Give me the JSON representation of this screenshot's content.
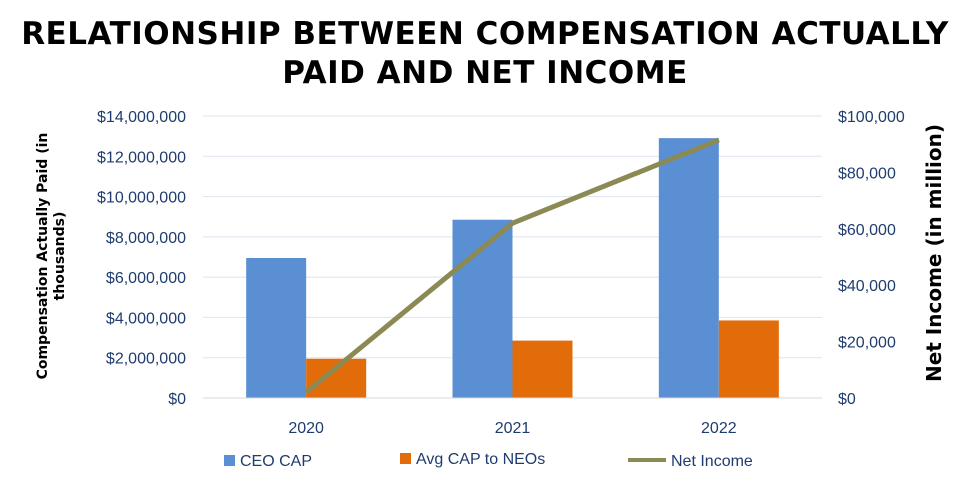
{
  "chart_data": {
    "type": "bar",
    "title_lines": [
      "RELATIONSHIP BETWEEN COMPENSATION ACTUALLY",
      "PAID AND NET INCOME"
    ],
    "categories": [
      "2020",
      "2021",
      "2022"
    ],
    "series": [
      {
        "name": "CEO CAP",
        "type": "bar",
        "axis": "left",
        "values": [
          6950000,
          8850000,
          12900000
        ]
      },
      {
        "name": "Avg CAP to NEOs",
        "type": "bar",
        "axis": "left",
        "values": [
          1950000,
          2850000,
          3850000
        ]
      },
      {
        "name": "Net Income",
        "type": "line",
        "axis": "right",
        "values": [
          2000,
          62000,
          91500
        ]
      }
    ],
    "ylabel_lines": [
      "Compensation Actually Paid (in",
      "thousands)"
    ],
    "y2label": "Net Income (in million)",
    "ylim": [
      0,
      14000000
    ],
    "y2lim": [
      0,
      100000
    ],
    "yticks": [
      "$0",
      "$2,000,000",
      "$4,000,000",
      "$6,000,000",
      "$8,000,000",
      "$10,000,000",
      "$12,000,000",
      "$14,000,000"
    ],
    "y2ticks": [
      "$0",
      "$20,000",
      "$40,000",
      "$60,000",
      "$80,000",
      "$100,000"
    ],
    "grid": true,
    "legend_position": "bottom",
    "colors": {
      "CEO CAP": "#5b8fd4",
      "Avg CAP to NEOs": "#e36c0a",
      "Net Income": "#8b8a55"
    }
  }
}
